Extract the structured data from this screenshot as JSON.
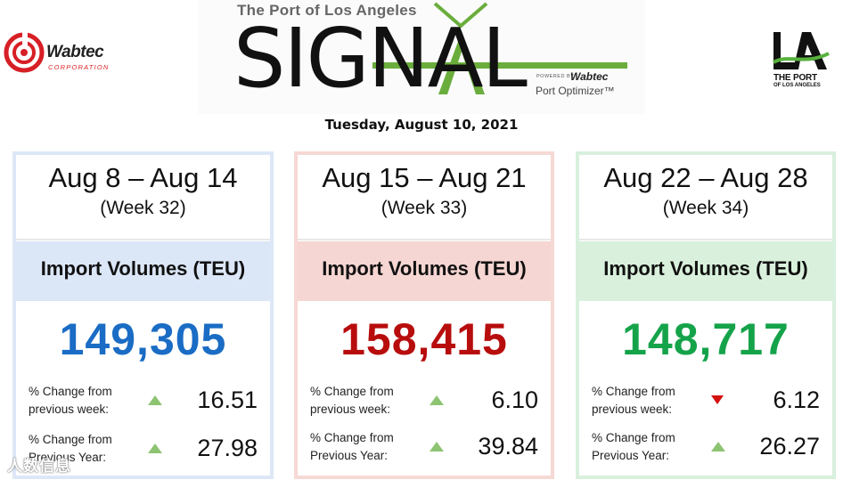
{
  "header": {
    "left_logo": {
      "name": "Wabtec",
      "subtitle": "CORPORATION",
      "icon": "wabtec-swirl-icon"
    },
    "banner": {
      "subtitle": "The Port of Los Angeles",
      "title": "SIGNAL",
      "powered_by": "POWERED BY",
      "powered_brand": "Wabtec",
      "product": "Port Optimizer™"
    },
    "right_logo": {
      "mark": "LA",
      "line1": "THE PORT",
      "line2": "OF LOS ANGELES",
      "icon": "la-port-logo-icon"
    },
    "date": "Tuesday, August 10, 2021"
  },
  "cards": [
    {
      "range": "Aug 8 – Aug 14",
      "week": "(Week 32)",
      "heading": "Import Volumes (TEU)",
      "volume": "149,305",
      "color": "#1a6cc4",
      "weekly_label_1": "% Change from",
      "weekly_label_2": "previous week:",
      "weekly_value": "16.51",
      "weekly_direction": "up",
      "yearly_label_1": "% Change from",
      "yearly_label_2": "Previous Year:",
      "yearly_value": "27.98",
      "yearly_direction": "up"
    },
    {
      "range": "Aug 15 – Aug 21",
      "week": "(Week 33)",
      "heading": "Import Volumes (TEU)",
      "volume": "158,415",
      "color": "#b80d0d",
      "weekly_label_1": "% Change from",
      "weekly_label_2": "previous week:",
      "weekly_value": "6.10",
      "weekly_direction": "up",
      "yearly_label_1": "% Change from",
      "yearly_label_2": "Previous Year:",
      "yearly_value": "39.84",
      "yearly_direction": "up"
    },
    {
      "range": "Aug 22 – Aug 28",
      "week": "(Week 34)",
      "heading": "Import Volumes (TEU)",
      "volume": "148,717",
      "color": "#15a34a",
      "weekly_label_1": "% Change from",
      "weekly_label_2": "previous week:",
      "weekly_value": "6.12",
      "weekly_direction": "down",
      "yearly_label_1": "% Change from",
      "yearly_label_2": "Previous Year:",
      "yearly_value": "26.27",
      "yearly_direction": "up"
    }
  ],
  "watermark": "人数信息"
}
